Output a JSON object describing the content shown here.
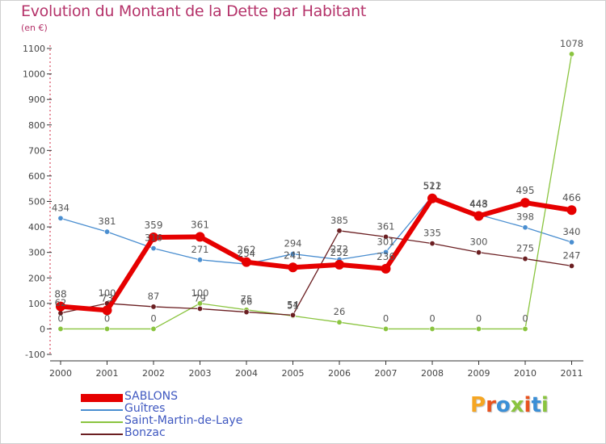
{
  "title": "Evolution du Montant de la Dette par Habitant",
  "unit_label": "(en €)",
  "logo_text": "Proxiti",
  "logo_colors": [
    "#f5a623",
    "#e8531f",
    "#3b8fd6",
    "#8ac43f",
    "#e8531f",
    "#3b8fd6",
    "#8ac43f"
  ],
  "chart_data": {
    "type": "line",
    "title": "Evolution du Montant de la Dette par Habitant",
    "ylabel": "(en €)",
    "x": [
      "2000",
      "2001",
      "2002",
      "2003",
      "2004",
      "2005",
      "2006",
      "2007",
      "2008",
      "2009",
      "2010",
      "2011"
    ],
    "ylim": [
      -100,
      1100
    ],
    "yticks": [
      -100,
      0,
      100,
      200,
      300,
      400,
      500,
      600,
      700,
      800,
      900,
      1000,
      1100
    ],
    "grid": false,
    "legend_position": "bottom-left",
    "series": [
      {
        "name": "SABLONS",
        "color": "#e60000",
        "values": [
          88,
          73,
          359,
          361,
          262,
          241,
          252,
          236,
          512,
          443,
          495,
          466
        ]
      },
      {
        "name": "Guîtres",
        "color": "#4a8ed0",
        "values": [
          434,
          381,
          316,
          271,
          254,
          294,
          272,
          301,
          521,
          448,
          398,
          340
        ]
      },
      {
        "name": "Saint-Martin-de-Laye",
        "color": "#8ac43f",
        "values": [
          0,
          0,
          0,
          100,
          75,
          51,
          26,
          0,
          0,
          0,
          0,
          1078
        ]
      },
      {
        "name": "Bonzac",
        "color": "#6b1f22",
        "values": [
          62,
          100,
          87,
          79,
          66,
          54,
          385,
          361,
          335,
          300,
          275,
          247
        ]
      }
    ],
    "data_labels": [
      {
        "series": "SABLONS",
        "labels": [
          "88",
          "73",
          "359",
          "361",
          "262",
          "241",
          "252",
          "236",
          "512",
          "443",
          "495",
          "466"
        ]
      },
      {
        "series": "Guîtres",
        "labels": [
          "434",
          "381",
          "316",
          "271",
          "254",
          "294",
          "272",
          "301",
          "521",
          "448",
          "398",
          "340"
        ]
      },
      {
        "series": "Saint-Martin-de-Laye",
        "labels": [
          "0",
          "0",
          "0",
          "100",
          "75",
          "51",
          "26",
          "0",
          "0",
          "0",
          "0",
          "1078"
        ]
      },
      {
        "series": "Bonzac",
        "labels": [
          "62",
          "100",
          "87",
          "79",
          "66",
          "54",
          "385",
          "361",
          "335",
          "300",
          "275",
          "247"
        ]
      }
    ]
  }
}
